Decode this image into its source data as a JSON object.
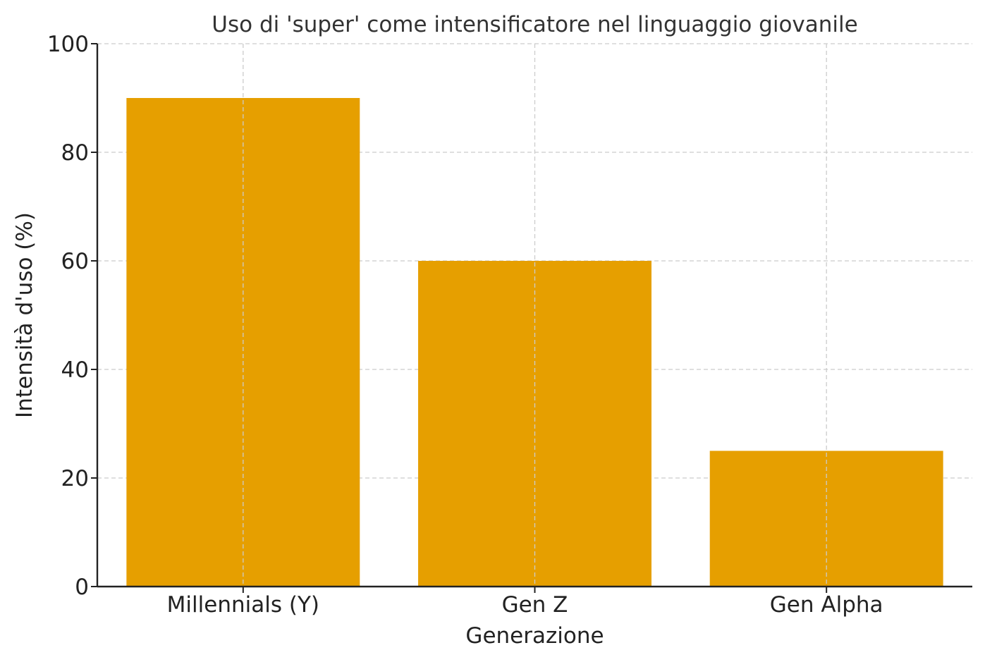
{
  "chart_data": {
    "type": "bar",
    "title": "Uso di 'super' come intensificatore nel linguaggio giovanile",
    "xlabel": "Generazione",
    "ylabel": "Intensità d'uso (%)",
    "categories": [
      "Millennials (Y)",
      "Gen Z",
      "Gen Alpha"
    ],
    "values": [
      90,
      60,
      25
    ],
    "ylim": [
      0,
      100
    ],
    "yticks": [
      0,
      20,
      40,
      60,
      80,
      100
    ],
    "bar_color": "#E69F00",
    "grid": true,
    "legend": "none"
  }
}
